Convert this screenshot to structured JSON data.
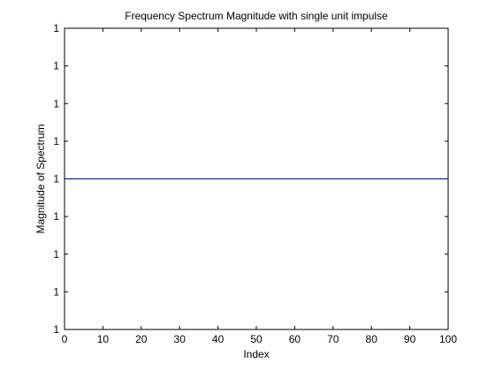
{
  "chart_data": {
    "type": "line",
    "title": "Frequency Spectrum Magnitude with single unit impulse",
    "xlabel": "Index",
    "ylabel": "Magnitude of Spectrum",
    "xlim": [
      0,
      100
    ],
    "ylim": [
      0.999,
      1.001
    ],
    "x_ticks": [
      0,
      10,
      20,
      30,
      40,
      50,
      60,
      70,
      80,
      90,
      100
    ],
    "y_ticks": [
      0.999,
      0.99925,
      0.9995,
      0.99975,
      1.0,
      1.00025,
      1.0005,
      1.00075,
      1.001
    ],
    "y_tick_labels": [
      "1",
      "1",
      "1",
      "1",
      "1",
      "1",
      "1",
      "1",
      "1"
    ],
    "grid": false,
    "series": [
      {
        "color": "#00007f",
        "x": [
          0,
          100
        ],
        "y": [
          1,
          1
        ]
      }
    ]
  }
}
